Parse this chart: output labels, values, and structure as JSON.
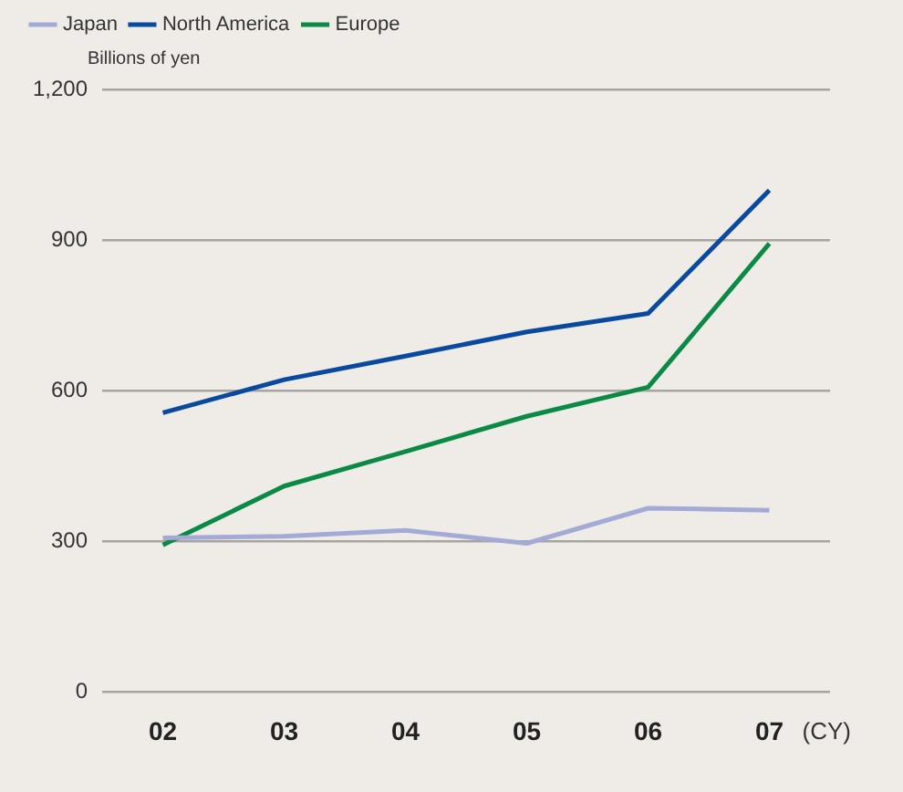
{
  "chart_data": {
    "type": "line",
    "ylabel": "Billions of yen",
    "categories": [
      "02",
      "03",
      "04",
      "05",
      "06",
      "07"
    ],
    "series": [
      {
        "name": "Japan",
        "color": "#a4aad6",
        "values": [
          307,
          310,
          322,
          296,
          366,
          362
        ]
      },
      {
        "name": "North America",
        "color": "#0a4a9e",
        "values": [
          556,
          622,
          669,
          717,
          754,
          999
        ]
      },
      {
        "name": "Europe",
        "color": "#0a8a45",
        "values": [
          293,
          410,
          479,
          549,
          607,
          893
        ]
      }
    ],
    "ylim": [
      0,
      1200
    ],
    "yticks": [
      0,
      300,
      600,
      900,
      {
        "value": 1200,
        "label": "1,200"
      }
    ],
    "grid": "y",
    "legend": "top left",
    "marker": "none",
    "line_style": "solid",
    "annotations": [
      "(CY)"
    ]
  }
}
